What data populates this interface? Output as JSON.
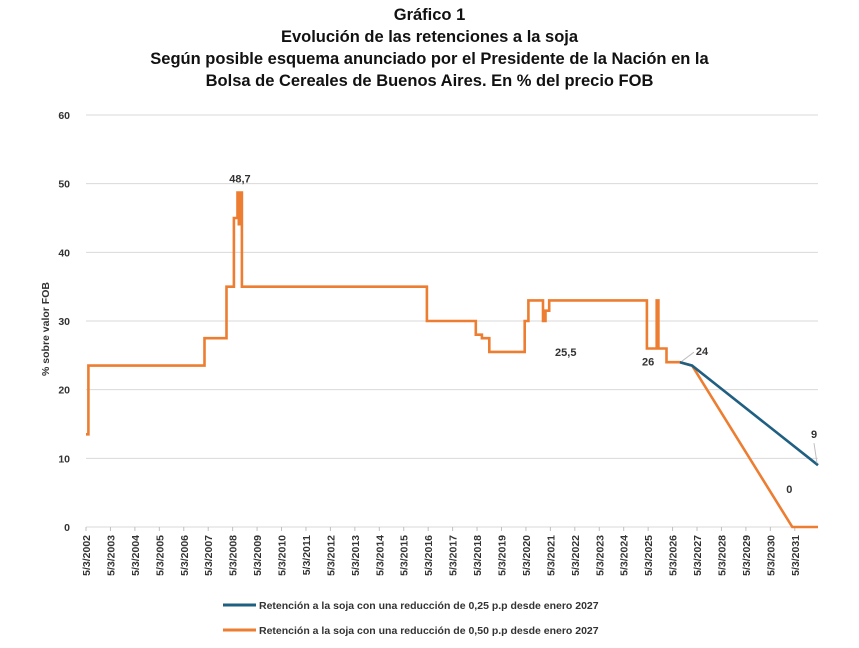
{
  "titles": {
    "line1": "Gráfico 1",
    "line2": "Evolución de las retenciones a la soja",
    "line3": "Según posible esquema anunciado por el Presidente de la Nación en la",
    "line4": "Bolsa de Cereales de Buenos Aires. En % del precio FOB"
  },
  "chart_data": {
    "type": "line",
    "title": "Evolución de las retenciones a la soja",
    "ylabel": "% sobre valor FOB",
    "xlabel": "",
    "ylim": [
      0,
      60
    ],
    "yticks": [
      0,
      10,
      20,
      30,
      40,
      50,
      60
    ],
    "xlim": [
      2002.0,
      2031.95
    ],
    "xticks": [
      "5/3/2002",
      "5/3/2003",
      "5/3/2004",
      "5/3/2005",
      "5/3/2006",
      "5/3/2007",
      "5/3/2008",
      "5/3/2009",
      "5/3/2010",
      "5/3/2011",
      "5/3/2012",
      "5/3/2013",
      "5/3/2014",
      "5/3/2015",
      "5/3/2016",
      "5/3/2017",
      "5/3/2018",
      "5/3/2019",
      "5/3/2020",
      "5/3/2021",
      "5/3/2022",
      "5/3/2023",
      "5/3/2024",
      "5/3/2025",
      "5/3/2026",
      "5/3/2027",
      "5/3/2028",
      "5/3/2029",
      "5/3/2030",
      "5/3/2031"
    ],
    "grid": true,
    "legend_position": "bottom",
    "series": [
      {
        "name": "Retención a la soja con una reducción de 0,25 p.p desde enero 2027",
        "color": "#1f5f82",
        "points": [
          [
            2026.3,
            24.0
          ],
          [
            2026.8,
            23.5
          ],
          [
            2031.95,
            9.0
          ]
        ]
      },
      {
        "name": "Retención a la soja con una reducción de 0,50 p.p desde enero 2027",
        "color": "#ed7d31",
        "points": [
          [
            2002.0,
            13.5
          ],
          [
            2002.0,
            13.5
          ],
          [
            2002.1,
            13.5
          ],
          [
            2002.1,
            23.5
          ],
          [
            2006.85,
            23.5
          ],
          [
            2006.85,
            27.5
          ],
          [
            2007.75,
            27.5
          ],
          [
            2007.75,
            35.0
          ],
          [
            2008.05,
            35.0
          ],
          [
            2008.05,
            45.0
          ],
          [
            2008.2,
            45.0
          ],
          [
            2008.2,
            48.7
          ],
          [
            2008.25,
            48.7
          ],
          [
            2008.25,
            44.1
          ],
          [
            2008.3,
            44.1
          ],
          [
            2008.3,
            48.7
          ],
          [
            2008.38,
            48.7
          ],
          [
            2008.38,
            35.0
          ],
          [
            2015.95,
            35.0
          ],
          [
            2015.95,
            30.0
          ],
          [
            2017.95,
            30.0
          ],
          [
            2017.95,
            28.0
          ],
          [
            2018.2,
            28.0
          ],
          [
            2018.2,
            27.5
          ],
          [
            2018.5,
            27.5
          ],
          [
            2018.5,
            25.5
          ],
          [
            2019.95,
            25.5
          ],
          [
            2019.95,
            30.0
          ],
          [
            2020.1,
            30.0
          ],
          [
            2020.1,
            33.0
          ],
          [
            2020.7,
            33.0
          ],
          [
            2020.7,
            30.0
          ],
          [
            2020.8,
            30.0
          ],
          [
            2020.8,
            31.5
          ],
          [
            2020.95,
            31.5
          ],
          [
            2020.95,
            33.0
          ],
          [
            2024.95,
            33.0
          ],
          [
            2024.95,
            26.0
          ],
          [
            2025.35,
            26.0
          ],
          [
            2025.35,
            33.0
          ],
          [
            2025.42,
            33.0
          ],
          [
            2025.42,
            26.0
          ],
          [
            2025.75,
            26.0
          ],
          [
            2025.75,
            24.0
          ],
          [
            2026.3,
            24.0
          ],
          [
            2026.8,
            23.5
          ],
          [
            2030.9,
            0.0
          ],
          [
            2031.95,
            0.0
          ]
        ]
      }
    ],
    "annotations": [
      {
        "text": "48,7",
        "x": 2008.3,
        "y": 48.7
      },
      {
        "text": "25,5",
        "x": 2020.7,
        "y": 25.5
      },
      {
        "text": "26",
        "x": 2025.0,
        "y": 26.0
      },
      {
        "text": "24",
        "x": 2026.3,
        "y": 24.0
      },
      {
        "text": "9",
        "x": 2031.95,
        "y": 9.0
      },
      {
        "text": "0",
        "x": 2030.9,
        "y": 0.0
      }
    ]
  }
}
